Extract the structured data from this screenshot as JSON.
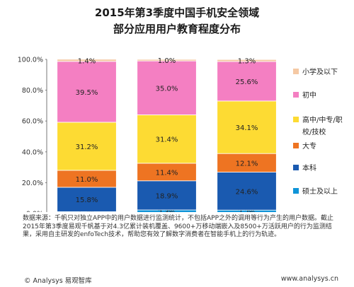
{
  "chart_data": {
    "type": "bar",
    "stacked": true,
    "title": "2015年第3季度中国手机安全领域",
    "subtitle": "部分应用用户教育程度分布",
    "categories": [
      "腾讯手机管家",
      "百度手机卫士",
      "360手机卫士"
    ],
    "series": [
      {
        "name": "硕士及以上",
        "color": "#0f94d8",
        "values": [
          1.2,
          2.3,
          2.2
        ],
        "labels": [
          "1.2%",
          "2.3%",
          "2.2%"
        ]
      },
      {
        "name": "本科",
        "color": "#1a5ab0",
        "values": [
          15.8,
          18.9,
          24.6
        ],
        "labels": [
          "15.8%",
          "18.9%",
          "24.6%"
        ]
      },
      {
        "name": "大专",
        "color": "#ee7422",
        "values": [
          11.0,
          11.4,
          12.1
        ],
        "labels": [
          "11.0%",
          "11.4%",
          "12.1%"
        ]
      },
      {
        "name": "高中/中专/职校/技校",
        "color": "#fddb33",
        "values": [
          31.2,
          31.4,
          34.1
        ],
        "labels": [
          "31.2%",
          "31.4%",
          "34.1%"
        ]
      },
      {
        "name": "初中",
        "color": "#f47fc2",
        "values": [
          39.5,
          35.0,
          25.6
        ],
        "labels": [
          "39.5%",
          "35.0%",
          "25.6%"
        ]
      },
      {
        "name": "小学及以下",
        "color": "#f5c9a4",
        "values": [
          1.4,
          1.0,
          1.3
        ],
        "labels": [
          "1.4%",
          "1.0%",
          "1.3%"
        ]
      }
    ],
    "yticks": [
      "0.0%",
      "20.0%",
      "40.0%",
      "60.0%",
      "80.0%",
      "100.0%"
    ],
    "ylim": [
      0,
      100
    ],
    "legend_position": "right",
    "legend_order": [
      "小学及以下",
      "初中",
      "高中/中专/职校/技校",
      "大专",
      "本科",
      "硕士及以上"
    ],
    "legend_lines": {
      "小学及以下": [
        "小学及以下"
      ],
      "初中": [
        "初中"
      ],
      "高中/中专/职校/技校": [
        "高中/中专/职",
        "校/技校"
      ],
      "大专": [
        "大专"
      ],
      "本科": [
        "本科"
      ],
      "硕士及以上": [
        "硕士及以上"
      ]
    }
  },
  "note": "数据来源：千帆只对独立APP中的用户数据进行监测统计，不包括APP之外的调用等行为产生的用户数据。截止2015年第3季度易观千帆基于对4.3亿累计装机覆盖、9600+万移动端嵌入及8500+万活跃用户的行为监测结果，采用自主研发的enfoTech技术，帮助您有效了解数字消费者在智能手机上的行为轨迹。",
  "footer": {
    "left": "© Analysys 易观智库",
    "right": "www.analysys.cn"
  }
}
